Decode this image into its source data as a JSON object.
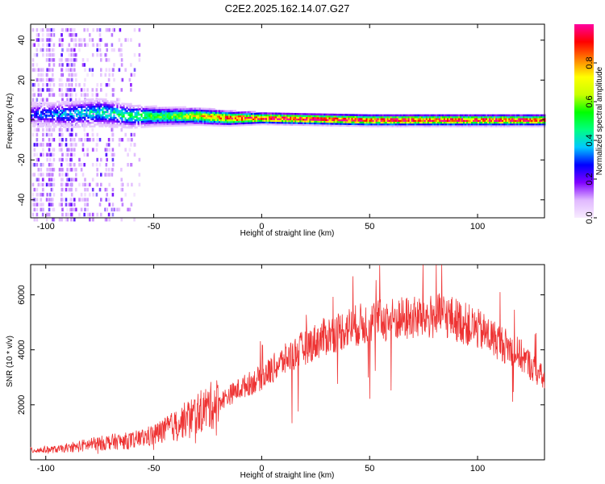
{
  "chart_data": [
    {
      "type": "heatmap",
      "title": "C2E2.2025.162.14.07.G27",
      "xlabel": "Height of straight line (km)",
      "ylabel": "Frequency (Hz)",
      "xlim": [
        -107,
        131
      ],
      "ylim": [
        -49,
        48
      ],
      "xticks": [
        -100,
        -50,
        0,
        50,
        100
      ],
      "yticks": [
        -40,
        -20,
        0,
        20,
        40
      ],
      "grid": false,
      "colorbar": {
        "label": "Normalized spectral amplitude",
        "range": [
          0.0,
          1.0
        ],
        "ticks": [
          0.0,
          0.2,
          0.4,
          0.6,
          0.8
        ],
        "tick_labels": [
          "0.0",
          "0.2",
          "0.4",
          "0.6",
          "0.8"
        ],
        "colormap": [
          "#f8ecff",
          "#e0b8ff",
          "#8000ff",
          "#0000ff",
          "#00c8ff",
          "#00ff80",
          "#00ff00",
          "#c8ff00",
          "#ffff00",
          "#ff8000",
          "#ff0000",
          "#ff00a0"
        ]
      },
      "signal": {
        "center_frequency_hz": [
          [
            -105,
            3
          ],
          [
            -90,
            3
          ],
          [
            -75,
            4
          ],
          [
            -60,
            2
          ],
          [
            -45,
            2
          ],
          [
            -30,
            2
          ],
          [
            -15,
            1
          ],
          [
            0,
            1
          ],
          [
            50,
            0
          ],
          [
            100,
            0
          ],
          [
            131,
            0
          ]
        ],
        "band_halfwidth_hz": [
          [
            -105,
            6
          ],
          [
            -75,
            7
          ],
          [
            -50,
            5
          ],
          [
            -20,
            4
          ],
          [
            0,
            3
          ],
          [
            131,
            3
          ]
        ],
        "peak_amplitude": [
          [
            -105,
            0.3
          ],
          [
            -75,
            0.45
          ],
          [
            -40,
            0.6
          ],
          [
            -15,
            0.9
          ],
          [
            10,
            1.0
          ],
          [
            131,
            0.95
          ]
        ]
      }
    },
    {
      "type": "line",
      "title": "",
      "xlabel": "Height of straight line (km)",
      "ylabel": "SNR (10 * v/v)",
      "xlim": [
        -107,
        131
      ],
      "ylim": [
        0,
        7100
      ],
      "xticks": [
        -100,
        -50,
        0,
        50,
        100
      ],
      "yticks": [
        2000,
        4000,
        6000
      ],
      "grid": false,
      "series": [
        {
          "color": "#ee3333",
          "trend": {
            "x": [
              -107,
              -95,
              -90,
              -80,
              -70,
              -60,
              -50,
              -40,
              -30,
              -20,
              -10,
              0,
              10,
              20,
              30,
              40,
              50,
              60,
              70,
              80,
              85,
              90,
              100,
              110,
              120,
              125,
              131
            ],
            "y": [
              350,
              380,
              420,
              550,
              650,
              700,
              900,
              1250,
              1700,
              2100,
              2600,
              3000,
              3600,
              4100,
              4500,
              4800,
              5000,
              5100,
              5150,
              5200,
              5250,
              5100,
              4750,
              4300,
              3800,
              3400,
              2900
            ]
          }
        }
      ]
    }
  ]
}
